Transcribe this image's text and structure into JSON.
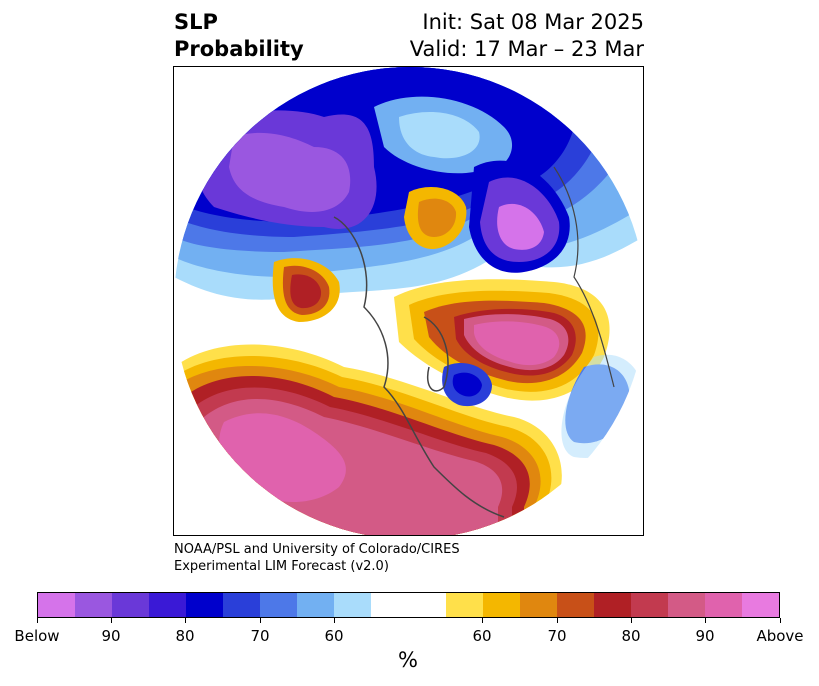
{
  "title": {
    "left_line1": "SLP",
    "left_line2": "Probability",
    "right_line1": "Init: Sat 08 Mar 2025",
    "right_line2": "Valid: 17 Mar – 23 Mar"
  },
  "credit": {
    "line1": "NOAA/PSL and University of Colorado/CIRES",
    "line2": "Experimental LIM Forecast (v2.0)"
  },
  "colorbar": {
    "colors": [
      "#d573ea",
      "#9a57e0",
      "#6a38d8",
      "#3a19d6",
      "#0000cc",
      "#2a3fd9",
      "#4d78e8",
      "#72b0f2",
      "#a9dcfb",
      "#ffffff",
      "#ffffff",
      "#ffe04a",
      "#f4b700",
      "#e0870f",
      "#c85018",
      "#b02025",
      "#c23a4f",
      "#d35a86",
      "#e062ad",
      "#e87ae0"
    ],
    "ticks": [
      "Below",
      "90",
      "80",
      "70",
      "60",
      "60",
      "70",
      "80",
      "90",
      "Above"
    ],
    "unit": "%"
  }
}
